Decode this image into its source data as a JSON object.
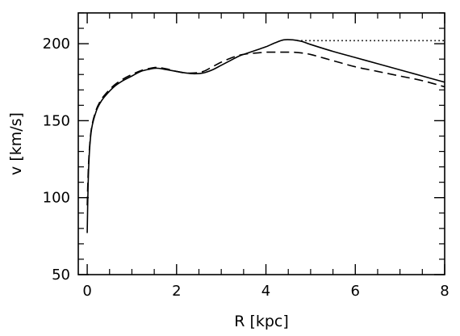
{
  "chart_data": {
    "type": "line",
    "title": "",
    "xlabel": "R [kpc]",
    "ylabel": "v [km/s]",
    "xlim": [
      -0.2,
      8
    ],
    "ylim": [
      50,
      220
    ],
    "xticks": [
      0,
      2,
      4,
      6,
      8
    ],
    "xtick_labels": [
      "0",
      "2",
      "4",
      "6",
      "8"
    ],
    "yticks": [
      50,
      100,
      150,
      200
    ],
    "ytick_labels": [
      "50",
      "100",
      "150",
      "200"
    ],
    "x_minor_step": 0.5,
    "y_minor_step": 10,
    "grid": false,
    "legend": "none",
    "series": [
      {
        "style": "solid",
        "x": [
          0.0,
          0.02,
          0.05,
          0.1,
          0.2,
          0.3,
          0.4,
          0.6,
          0.8,
          1.0,
          1.2,
          1.4,
          1.5,
          1.6,
          1.8,
          2.0,
          2.2,
          2.4,
          2.6,
          2.8,
          3.0,
          3.2,
          3.4,
          3.6,
          3.8,
          4.0,
          4.2,
          4.4,
          4.6,
          4.8,
          5.0,
          5.5,
          6.0,
          6.5,
          7.0,
          7.5,
          8.0
        ],
        "y": [
          77,
          108,
          130,
          145,
          156,
          162,
          166,
          172,
          176,
          179,
          182,
          183.5,
          184,
          184,
          183,
          182,
          181,
          180.5,
          181,
          183,
          186,
          189,
          192,
          194,
          196,
          198,
          200.5,
          202.5,
          202.5,
          201.5,
          199.5,
          195,
          191,
          187,
          183,
          179,
          175
        ]
      },
      {
        "style": "dashed",
        "x": [
          0.0,
          0.02,
          0.05,
          0.1,
          0.2,
          0.3,
          0.4,
          0.6,
          0.8,
          1.0,
          1.2,
          1.4,
          1.5,
          1.6,
          1.8,
          2.0,
          2.2,
          2.4,
          2.6,
          2.8,
          3.0,
          3.2,
          3.4,
          3.6,
          3.8,
          4.0,
          4.2,
          4.4,
          4.6,
          4.8,
          5.0,
          5.5,
          6.0,
          6.5,
          7.0,
          7.5,
          8.0
        ],
        "y": [
          95,
          115,
          132,
          146,
          157,
          163,
          167,
          173,
          177,
          180,
          182.5,
          184,
          184.5,
          184.5,
          183.5,
          182,
          181,
          181,
          182,
          185,
          188,
          190.5,
          192.5,
          193.5,
          194,
          194.5,
          194.5,
          194.5,
          194.5,
          194,
          193,
          189,
          185,
          182,
          179,
          176,
          172
        ]
      },
      {
        "style": "dotted",
        "x": [
          4.7,
          8.0
        ],
        "y": [
          202,
          202
        ]
      }
    ]
  }
}
